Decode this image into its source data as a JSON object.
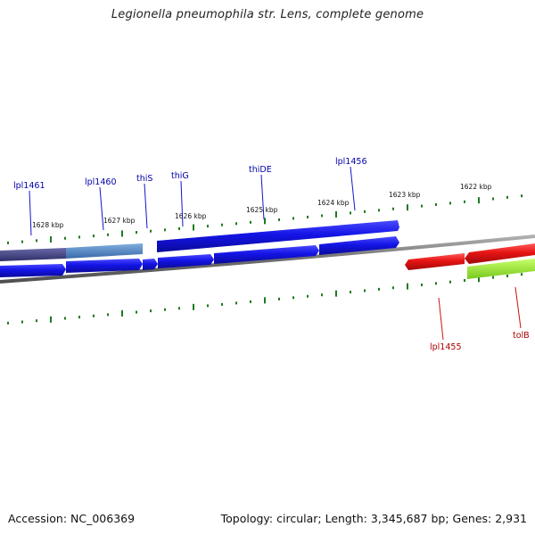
{
  "title": "Legionella pneumophila str. Lens, complete genome",
  "footer": {
    "accession": "Accession: NC_006369",
    "summary": "Topology: circular; Length: 3,345,687 bp; Genes: 2,931"
  },
  "ruler_labels": [
    "1628 kbp",
    "1627 kbp",
    "1626 kbp",
    "1625 kbp",
    "1624 kbp",
    "1623 kbp",
    "1622 kbp"
  ],
  "forward_gene_labels": [
    "lpl1461",
    "lpl1460",
    "thiS",
    "thiG",
    "thiDE",
    "lpl1456"
  ],
  "reverse_gene_labels": [
    "lpl1455",
    "tolB"
  ],
  "colors": {
    "forward_gene": "#1414e6",
    "reverse_gene": "#e61414",
    "highlight_dark": "#4a4a8c",
    "highlight_light": "#5a8cc8",
    "highlight_green": "#a0e632",
    "tick": "#1e7a1e",
    "backbone": "#808080"
  }
}
